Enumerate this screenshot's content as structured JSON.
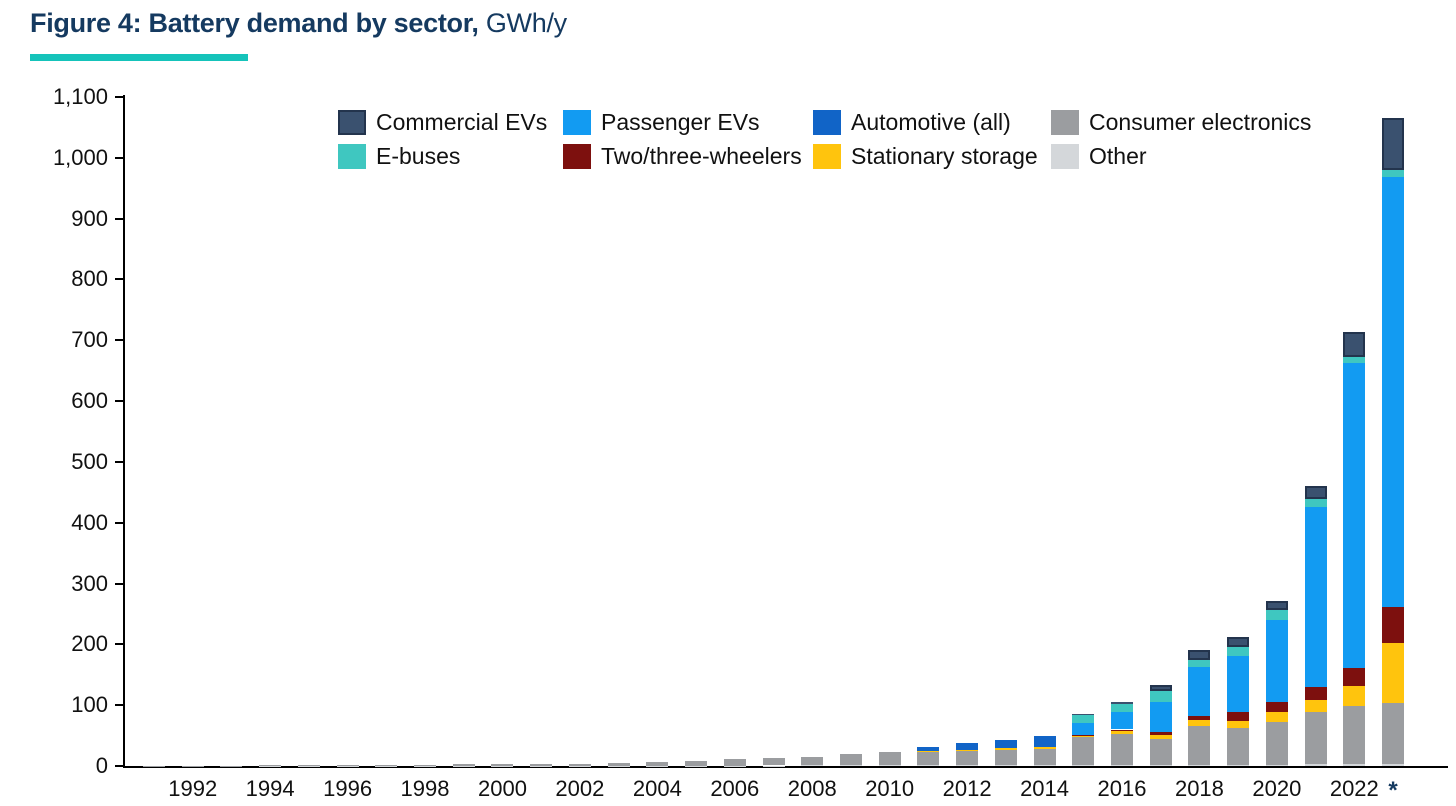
{
  "title": {
    "prefix": "Figure 4: Battery demand by sector,",
    "suffix": " GWh/y",
    "color": "#153A60",
    "underline_color": "#15C3BA"
  },
  "axis_note_asterisk": "*",
  "chart_data": {
    "type": "bar",
    "stacked": true,
    "title": "Figure 4: Battery demand by sector, GWh/y",
    "unit": "GWh/y",
    "ylim": [
      0,
      1100
    ],
    "ytick_interval": 100,
    "ytick_labels": [
      "0",
      "100",
      "200",
      "300",
      "400",
      "500",
      "600",
      "700",
      "800",
      "900",
      "1,000",
      "1,100"
    ],
    "xtick_labels": [
      "1992",
      "1994",
      "1996",
      "1998",
      "2000",
      "2002",
      "2004",
      "2006",
      "2008",
      "2010",
      "2012",
      "2014",
      "2016",
      "2018",
      "2020",
      "2022"
    ],
    "grid": false,
    "legend_position": "top",
    "categories": [
      1991,
      1992,
      1993,
      1994,
      1995,
      1996,
      1997,
      1998,
      1999,
      2000,
      2001,
      2002,
      2003,
      2004,
      2005,
      2006,
      2007,
      2008,
      2009,
      2010,
      2011,
      2012,
      2013,
      2014,
      2015,
      2016,
      2017,
      2018,
      2019,
      2020,
      2021,
      2022,
      2023
    ],
    "series": [
      {
        "name": "Other",
        "color": "#D4D7DA",
        "values": [
          0.1,
          0.1,
          0.1,
          0.2,
          0.2,
          0.2,
          0.3,
          0.3,
          0.3,
          0.3,
          0.4,
          0.4,
          0.5,
          0.5,
          0.6,
          0.7,
          0.8,
          1,
          1,
          1.2,
          1.5,
          1.5,
          1.5,
          1.5,
          2,
          2,
          2,
          2,
          2,
          2,
          3,
          3,
          3
        ]
      },
      {
        "name": "Consumer electronics",
        "color": "#9B9DA0",
        "values": [
          0.2,
          0.4,
          0.6,
          0.8,
          1,
          1.3,
          1.6,
          2,
          2.4,
          2.8,
          3.2,
          3.6,
          4.7,
          6,
          8.4,
          10.3,
          12.2,
          14.5,
          18,
          21.8,
          22,
          23.5,
          25,
          26.5,
          45,
          51,
          43,
          64,
          61,
          70,
          85,
          95,
          100
        ]
      },
      {
        "name": "Stationary storage",
        "color": "#FFC40D",
        "values": [
          0,
          0,
          0,
          0,
          0,
          0,
          0,
          0,
          0,
          0,
          0,
          0,
          0,
          0,
          0,
          0,
          0,
          0,
          0,
          0,
          1,
          2,
          3,
          4,
          3.5,
          4,
          5.5,
          9,
          11,
          16,
          20,
          33,
          100
        ]
      },
      {
        "name": "Two/three-wheelers",
        "color": "#7D100E",
        "values": [
          0,
          0,
          0,
          0,
          0,
          0,
          0,
          0,
          0,
          0,
          0,
          0,
          0,
          0,
          0,
          0,
          0,
          0,
          0,
          0,
          0,
          0,
          0,
          0,
          1,
          3,
          5.5,
          8,
          14,
          17,
          22,
          30,
          59
        ]
      },
      {
        "name": "Automotive (all)",
        "color": "#1164C7",
        "values": [
          0,
          0,
          0,
          0,
          0,
          0,
          0,
          0,
          0,
          0,
          0,
          0,
          0,
          0,
          0,
          0,
          0,
          0,
          0,
          0,
          7,
          10,
          13,
          18,
          0,
          0,
          0,
          0,
          0,
          0,
          0,
          0,
          0
        ]
      },
      {
        "name": "Passenger EVs",
        "color": "#129BF2",
        "values": [
          0,
          0,
          0,
          0,
          0,
          0,
          0,
          0,
          0,
          0,
          0,
          0,
          0,
          0,
          0,
          0,
          0,
          0,
          0,
          0,
          0,
          0,
          0,
          0,
          19,
          28,
          49,
          79,
          93,
          135,
          296,
          501,
          706
        ]
      },
      {
        "name": "E-buses",
        "color": "#3FC7C0",
        "values": [
          0,
          0,
          0,
          0,
          0,
          0,
          0,
          0,
          0,
          0,
          0,
          0,
          0,
          0,
          0,
          0,
          0,
          0,
          0,
          0,
          0,
          0,
          0,
          0,
          13.5,
          14,
          19,
          12,
          15,
          16,
          13,
          11,
          12
        ]
      },
      {
        "name": "Commercial EVs",
        "color": "#3A516F",
        "border_color": "#23344D",
        "values": [
          0,
          0,
          0,
          0,
          0,
          0,
          0,
          0,
          0,
          0,
          0,
          0,
          0,
          0,
          0,
          0,
          0,
          0,
          0,
          0,
          0,
          0,
          0,
          0,
          1,
          4,
          8.5,
          16,
          16,
          16,
          22,
          41,
          85
        ]
      }
    ],
    "legend_rows": [
      [
        "Commercial EVs",
        "Passenger EVs",
        "Automotive (all)",
        "Consumer electronics"
      ],
      [
        "E-buses",
        "Two/three-wheelers",
        "Stationary storage",
        "Other"
      ]
    ]
  }
}
